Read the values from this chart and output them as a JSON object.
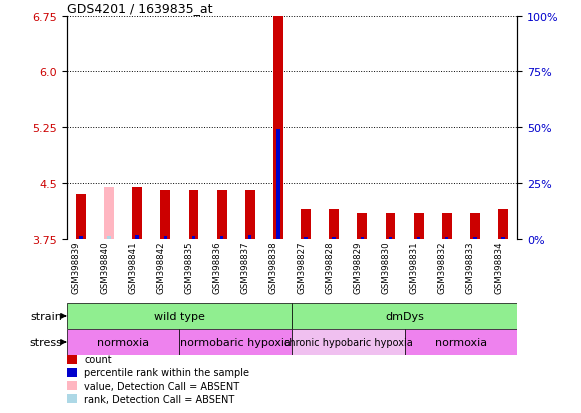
{
  "title": "GDS4201 / 1639835_at",
  "samples": [
    "GSM398839",
    "GSM398840",
    "GSM398841",
    "GSM398842",
    "GSM398835",
    "GSM398836",
    "GSM398837",
    "GSM398838",
    "GSM398827",
    "GSM398828",
    "GSM398829",
    "GSM398830",
    "GSM398831",
    "GSM398832",
    "GSM398833",
    "GSM398834"
  ],
  "red_values": [
    4.35,
    0.0,
    4.45,
    4.4,
    4.4,
    4.4,
    4.4,
    6.75,
    4.15,
    4.15,
    4.1,
    4.1,
    4.1,
    4.1,
    4.1,
    4.15
  ],
  "pink_values": [
    0.0,
    4.45,
    0.0,
    0.0,
    0.0,
    0.0,
    0.0,
    0.0,
    0.0,
    0.0,
    0.0,
    0.0,
    0.0,
    0.0,
    0.0,
    0.0
  ],
  "blue_values": [
    3.79,
    0.0,
    3.8,
    3.79,
    3.79,
    3.79,
    3.8,
    5.22,
    3.77,
    3.77,
    3.77,
    3.77,
    3.77,
    3.77,
    3.77,
    3.77
  ],
  "lblue_values": [
    0.0,
    3.79,
    0.0,
    0.0,
    0.0,
    0.0,
    0.0,
    0.0,
    0.0,
    0.0,
    0.0,
    0.0,
    0.0,
    0.0,
    0.0,
    0.0
  ],
  "ymin": 3.75,
  "ymax": 6.75,
  "yticks_left": [
    3.75,
    4.5,
    5.25,
    6.0,
    6.75
  ],
  "yticks_right": [
    0,
    25,
    50,
    75,
    100
  ],
  "baseline": 3.75,
  "strain_groups": [
    {
      "label": "wild type",
      "start": 0,
      "end": 8,
      "color": "#90EE90"
    },
    {
      "label": "dmDys",
      "start": 8,
      "end": 16,
      "color": "#90EE90"
    }
  ],
  "stress_groups": [
    {
      "label": "normoxia",
      "start": 0,
      "end": 4,
      "color": "#EE82EE"
    },
    {
      "label": "normobaric hypoxia",
      "start": 4,
      "end": 8,
      "color": "#EE82EE"
    },
    {
      "label": "chronic hypobaric hypoxia",
      "start": 8,
      "end": 12,
      "color": "#F0C0F0"
    },
    {
      "label": "normoxia",
      "start": 12,
      "end": 16,
      "color": "#EE82EE"
    }
  ],
  "legend_items": [
    {
      "label": "count",
      "color": "#CC0000"
    },
    {
      "label": "percentile rank within the sample",
      "color": "#0000CC"
    },
    {
      "label": "value, Detection Call = ABSENT",
      "color": "#FFB6C1"
    },
    {
      "label": "rank, Detection Call = ABSENT",
      "color": "#ADD8E6"
    }
  ],
  "red_bar_width": 0.35,
  "blue_bar_width": 0.12,
  "sample_box_color": "#C8C8C8",
  "tick_color_left": "#CC0000",
  "tick_color_right": "#0000CC"
}
